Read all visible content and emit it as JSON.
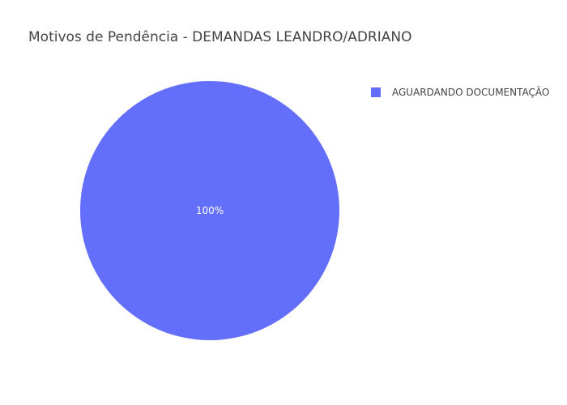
{
  "chart_data": {
    "type": "pie",
    "title": "Motivos de Pendência - DEMANDAS LEANDRO/ADRIANO",
    "labels": [
      "AGUARDANDO DOCUMENTAÇÃO"
    ],
    "values": [
      100
    ],
    "percent_labels": [
      "100%"
    ],
    "colors": [
      "#636efa"
    ],
    "legend_position": "top-right"
  }
}
